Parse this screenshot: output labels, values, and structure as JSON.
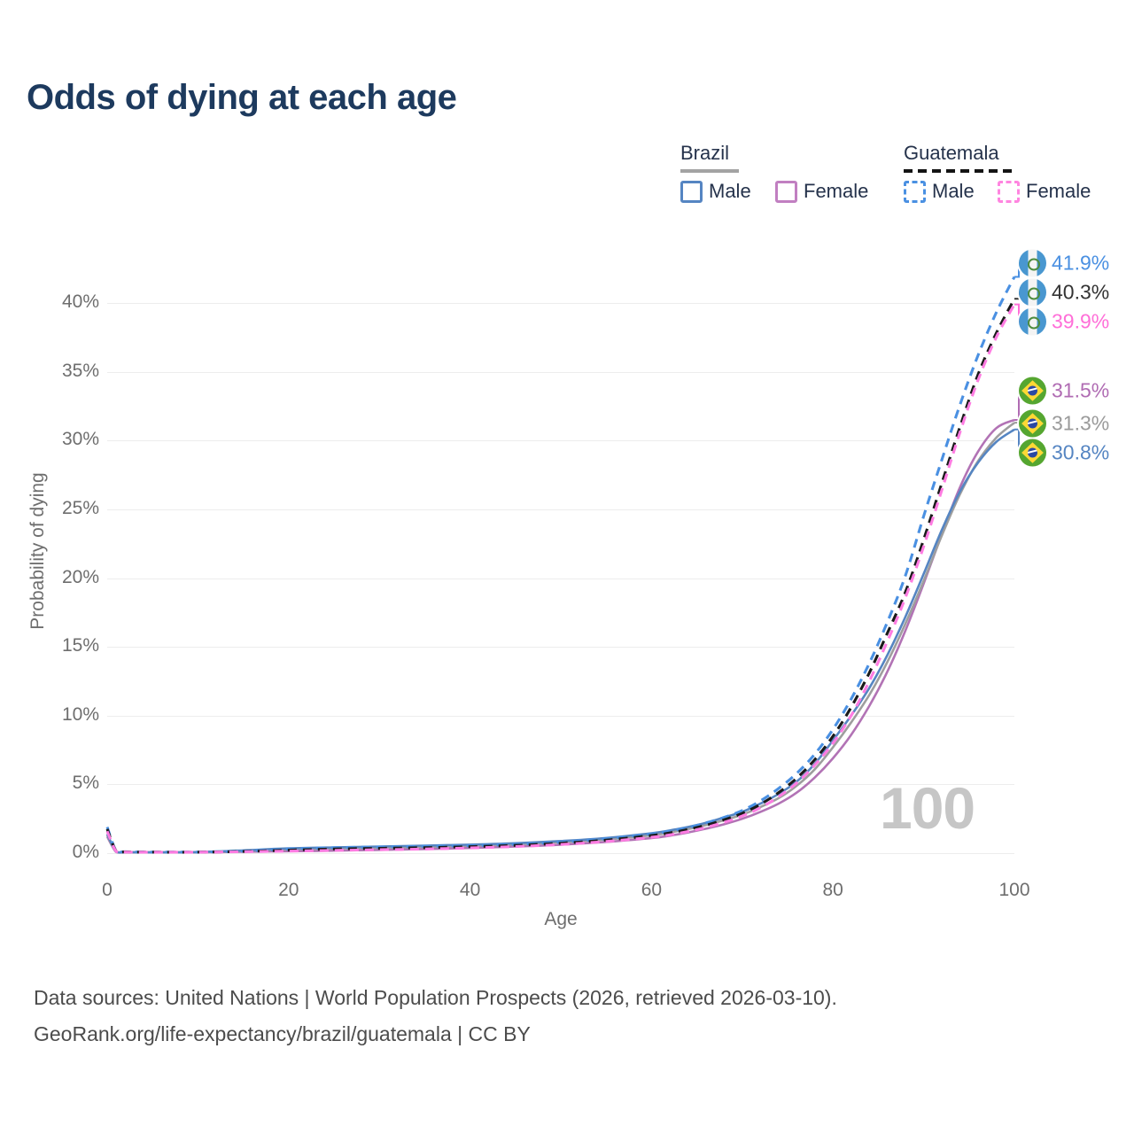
{
  "title": "Odds of dying at each age",
  "legend": {
    "groups": [
      {
        "label": "Brazil",
        "line_style": "solid",
        "line_color": "#a3a3a3",
        "items": [
          {
            "label": "Male",
            "color": "#5585c2",
            "dash": false
          },
          {
            "label": "Female",
            "color": "#c17fc1",
            "dash": false
          }
        ]
      },
      {
        "label": "Guatemala",
        "line_style": "dashed",
        "line_color": "#141414",
        "items": [
          {
            "label": "Male",
            "color": "#4a90e2",
            "dash": true
          },
          {
            "label": "Female",
            "color": "#ff85e0",
            "dash": true
          }
        ]
      }
    ]
  },
  "watermark": "100",
  "chart_data": {
    "type": "line",
    "title": "Odds of dying at each age",
    "xlabel": "Age",
    "ylabel": "Probability of dying",
    "xlim": [
      0,
      100
    ],
    "ylim": [
      0,
      43
    ],
    "grid": "horizontal",
    "legend_position": "top-right",
    "x_ticks": [
      0,
      20,
      40,
      60,
      80,
      100
    ],
    "y_tick_values": [
      0,
      5,
      10,
      15,
      20,
      25,
      30,
      35,
      40
    ],
    "y_tick_labels": [
      "0%",
      "5%",
      "10%",
      "15%",
      "20%",
      "25%",
      "30%",
      "35%",
      "40%"
    ],
    "ages": [
      0,
      1,
      2,
      5,
      10,
      15,
      20,
      25,
      30,
      35,
      40,
      45,
      50,
      55,
      60,
      62,
      64,
      66,
      68,
      70,
      72,
      74,
      76,
      78,
      80,
      82,
      84,
      86,
      88,
      90,
      92,
      94,
      96,
      98,
      100
    ],
    "series": [
      {
        "key": "brazil_female",
        "name": "Brazil Female",
        "color": "#b273b5",
        "dash": false,
        "values": [
          1.2,
          0.08,
          0.06,
          0.05,
          0.06,
          0.1,
          0.14,
          0.18,
          0.24,
          0.3,
          0.38,
          0.48,
          0.62,
          0.82,
          1.1,
          1.27,
          1.5,
          1.78,
          2.1,
          2.5,
          3.0,
          3.6,
          4.4,
          5.5,
          6.9,
          8.6,
          10.7,
          13.2,
          16.2,
          19.6,
          23.2,
          26.6,
          29.2,
          30.9,
          31.5
        ]
      },
      {
        "key": "brazil_both",
        "name": "Brazil Both sexes",
        "color": "#9e9e9e",
        "dash": false,
        "values": [
          1.3,
          0.09,
          0.065,
          0.055,
          0.07,
          0.16,
          0.28,
          0.34,
          0.4,
          0.46,
          0.54,
          0.64,
          0.8,
          1.0,
          1.3,
          1.5,
          1.75,
          2.05,
          2.4,
          2.8,
          3.35,
          4.0,
          4.9,
          6.1,
          7.7,
          9.5,
          11.5,
          13.9,
          16.7,
          19.8,
          23.1,
          26.1,
          28.5,
          30.2,
          31.3
        ]
      },
      {
        "key": "brazil_male",
        "name": "Brazil Male",
        "color": "#5585c2",
        "dash": false,
        "values": [
          1.4,
          0.1,
          0.07,
          0.06,
          0.08,
          0.2,
          0.35,
          0.42,
          0.48,
          0.55,
          0.62,
          0.72,
          0.88,
          1.1,
          1.45,
          1.65,
          1.9,
          2.2,
          2.6,
          3.0,
          3.6,
          4.3,
          5.2,
          6.5,
          8.2,
          10.0,
          12.0,
          14.4,
          17.2,
          20.3,
          23.5,
          26.3,
          28.4,
          29.9,
          30.8
        ]
      },
      {
        "key": "guatemala_male",
        "name": "Guatemala Male",
        "color": "#4a90e2",
        "dash": true,
        "values": [
          1.9,
          0.15,
          0.1,
          0.08,
          0.08,
          0.15,
          0.3,
          0.4,
          0.45,
          0.5,
          0.55,
          0.65,
          0.8,
          1.05,
          1.4,
          1.6,
          1.85,
          2.2,
          2.6,
          3.1,
          3.8,
          4.7,
          5.8,
          7.2,
          9.0,
          11.2,
          13.8,
          16.8,
          20.2,
          24.5,
          28.6,
          32.6,
          36.2,
          39.3,
          41.9
        ]
      },
      {
        "key": "guatemala_both",
        "name": "Guatemala Both sexes",
        "color": "#1a1a1a",
        "dash": true,
        "values": [
          1.75,
          0.14,
          0.09,
          0.075,
          0.075,
          0.12,
          0.22,
          0.3,
          0.35,
          0.4,
          0.47,
          0.57,
          0.72,
          0.95,
          1.28,
          1.47,
          1.72,
          2.03,
          2.42,
          2.9,
          3.55,
          4.4,
          5.45,
          6.8,
          8.5,
          10.6,
          13.1,
          16.0,
          19.0,
          22.8,
          26.9,
          31.0,
          34.8,
          37.8,
          40.3
        ]
      },
      {
        "key": "guatemala_female",
        "name": "Guatemala Female",
        "color": "#ff7ce2",
        "dash": true,
        "values": [
          1.6,
          0.12,
          0.08,
          0.07,
          0.07,
          0.1,
          0.15,
          0.2,
          0.25,
          0.3,
          0.38,
          0.48,
          0.63,
          0.85,
          1.15,
          1.33,
          1.57,
          1.87,
          2.24,
          2.7,
          3.3,
          4.1,
          5.1,
          6.4,
          8.0,
          10.0,
          12.5,
          15.4,
          18.6,
          22.3,
          26.4,
          30.6,
          34.4,
          37.5,
          39.9
        ]
      }
    ],
    "end_labels": [
      {
        "value": "41.9%",
        "color": "#4a90e2",
        "country": "Guatemala",
        "series": "guatemala_male"
      },
      {
        "value": "40.3%",
        "color": "#333333",
        "country": "Guatemala",
        "series": "guatemala_both"
      },
      {
        "value": "39.9%",
        "color": "#ff6fd8",
        "country": "Guatemala",
        "series": "guatemala_female"
      },
      {
        "value": "31.5%",
        "color": "#b06cb3",
        "country": "Brazil",
        "series": "brazil_female"
      },
      {
        "value": "31.3%",
        "color": "#9b9b9b",
        "country": "Brazil",
        "series": "brazil_both"
      },
      {
        "value": "30.8%",
        "color": "#5585c2",
        "country": "Brazil",
        "series": "brazil_male"
      }
    ]
  },
  "footer": {
    "line1": "Data sources: United Nations | World Population Prospects (2026, retrieved 2026-03-10).",
    "line2": "GeoRank.org/life-expectancy/brazil/guatemala | CC BY"
  }
}
